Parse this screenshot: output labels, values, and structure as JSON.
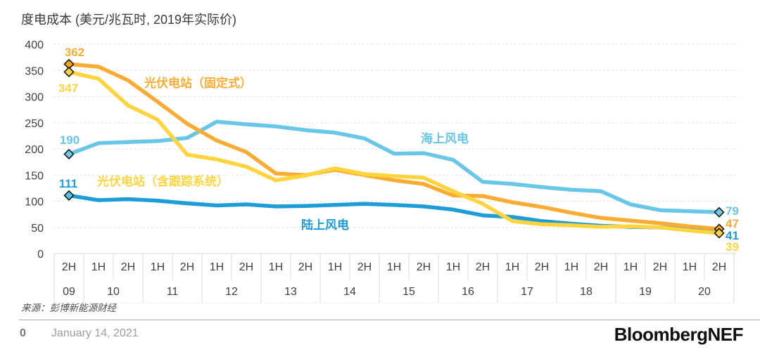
{
  "header": {
    "title": "度电成本 (美元/兆瓦时, 2019年实际价)"
  },
  "chart_data": {
    "type": "line",
    "title": "度电成本 (美元/兆瓦时, 2019年实际价)",
    "ylabel": "美元/兆瓦时",
    "ylim": [
      0,
      400
    ],
    "ytick_interval": 50,
    "grid": "horizontal-dashed",
    "legend_position": "inline-annotations",
    "categories": [
      "2H09",
      "1H10",
      "2H10",
      "1H11",
      "2H11",
      "1H12",
      "2H12",
      "1H13",
      "2H13",
      "1H14",
      "2H14",
      "1H15",
      "2H15",
      "1H16",
      "2H16",
      "1H17",
      "2H17",
      "1H18",
      "2H18",
      "1H19",
      "2H19",
      "1H20",
      "2H20"
    ],
    "periods": [
      {
        "year": "09",
        "halves": [
          "2H"
        ]
      },
      {
        "year": "10",
        "halves": [
          "1H",
          "2H"
        ]
      },
      {
        "year": "11",
        "halves": [
          "1H",
          "2H"
        ]
      },
      {
        "year": "12",
        "halves": [
          "1H",
          "2H"
        ]
      },
      {
        "year": "13",
        "halves": [
          "1H",
          "2H"
        ]
      },
      {
        "year": "14",
        "halves": [
          "1H",
          "2H"
        ]
      },
      {
        "year": "15",
        "halves": [
          "1H",
          "2H"
        ]
      },
      {
        "year": "16",
        "halves": [
          "1H",
          "2H"
        ]
      },
      {
        "year": "17",
        "halves": [
          "1H",
          "2H"
        ]
      },
      {
        "year": "18",
        "halves": [
          "1H",
          "2H"
        ]
      },
      {
        "year": "19",
        "halves": [
          "1H",
          "2H"
        ]
      },
      {
        "year": "20",
        "halves": [
          "1H",
          "2H"
        ]
      }
    ],
    "series": [
      {
        "key": "fixed",
        "name": "光伏电站（固定式）",
        "color": "#F8AC33",
        "marker_fill": "#F6A71E",
        "start_label": "362",
        "end_label": "47",
        "values": [
          362,
          357,
          331,
          290,
          248,
          216,
          194,
          153,
          150,
          160,
          150,
          140,
          133,
          111,
          110,
          98,
          89,
          78,
          68,
          63,
          58,
          52,
          47
        ]
      },
      {
        "key": "tracking",
        "name": "光伏电站（含跟踪系统）",
        "color": "#FFD43D",
        "marker_fill": "#FFD43D",
        "start_label": "347",
        "end_label": "39",
        "values": [
          347,
          334,
          283,
          256,
          189,
          180,
          166,
          140,
          149,
          163,
          152,
          148,
          145,
          119,
          95,
          62,
          56,
          54,
          51,
          52,
          50,
          44,
          39
        ]
      },
      {
        "key": "offshore",
        "name": "海上风电",
        "color": "#68C7E6",
        "marker_fill": "#6FC9E8",
        "start_label": "190",
        "end_label": "79",
        "values": [
          190,
          211,
          213,
          215,
          221,
          252,
          247,
          243,
          236,
          231,
          220,
          191,
          192,
          179,
          137,
          133,
          127,
          122,
          119,
          94,
          83,
          81,
          79
        ]
      },
      {
        "key": "onshore",
        "name": "陆上风电",
        "color": "#1E9CD7",
        "marker_fill": "#4FC3E8",
        "start_label": "111",
        "end_label": "41",
        "values": [
          111,
          102,
          104,
          101,
          96,
          92,
          94,
          90,
          91,
          93,
          95,
          93,
          90,
          84,
          73,
          70,
          62,
          57,
          53,
          51,
          50,
          46,
          41
        ]
      }
    ]
  },
  "source": "来源：彭博新能源财经",
  "footer": {
    "page_number": "0",
    "date": "January 14, 2021",
    "brand": "BloombergNEF"
  },
  "colors": {
    "grid": "#E3E3E3",
    "axis_border": "#D9D9D9",
    "tick_text": "#3f3f3f",
    "footer_rule": "#B7A3DC"
  }
}
